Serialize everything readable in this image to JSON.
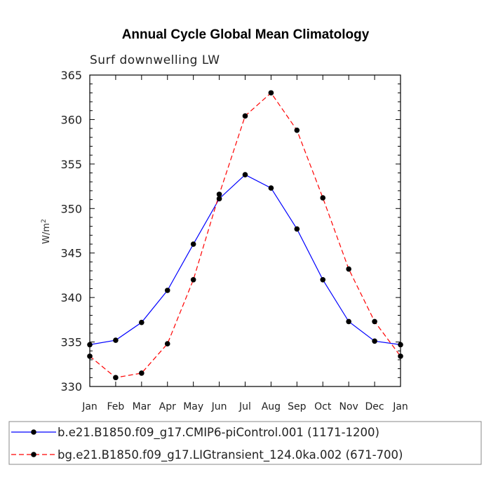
{
  "chart_data": {
    "type": "line",
    "title": "Annual Cycle Global Mean Climatology",
    "subtitle": "Surf downwelling LW",
    "ylabel": "W/m",
    "ylabel_superscript": "2",
    "ylim": [
      330,
      365
    ],
    "yticks": [
      330,
      335,
      340,
      345,
      350,
      355,
      360,
      365
    ],
    "categories": [
      "Jan",
      "Feb",
      "Mar",
      "Apr",
      "May",
      "Jun",
      "Jul",
      "Aug",
      "Sep",
      "Oct",
      "Nov",
      "Dec",
      "Jan"
    ],
    "grid": false,
    "legend_position": "bottom",
    "series": [
      {
        "name": "b.e21.B1850.f09_g17.CMIP6-piControl.001 (1171-1200)",
        "color": "#0000ff",
        "line_style": "solid",
        "values": [
          334.7,
          335.2,
          337.2,
          340.8,
          346.0,
          351.1,
          353.8,
          352.3,
          347.7,
          342.0,
          337.3,
          335.1,
          334.7
        ]
      },
      {
        "name": "bg.e21.B1850.f09_g17.LIGtransient_124.0ka.002 (671-700)",
        "color": "#ff0000",
        "line_style": "dashed",
        "values": [
          333.4,
          331.0,
          331.5,
          334.8,
          342.0,
          351.6,
          360.4,
          363.0,
          358.8,
          351.2,
          343.2,
          337.3,
          333.4
        ]
      }
    ]
  }
}
